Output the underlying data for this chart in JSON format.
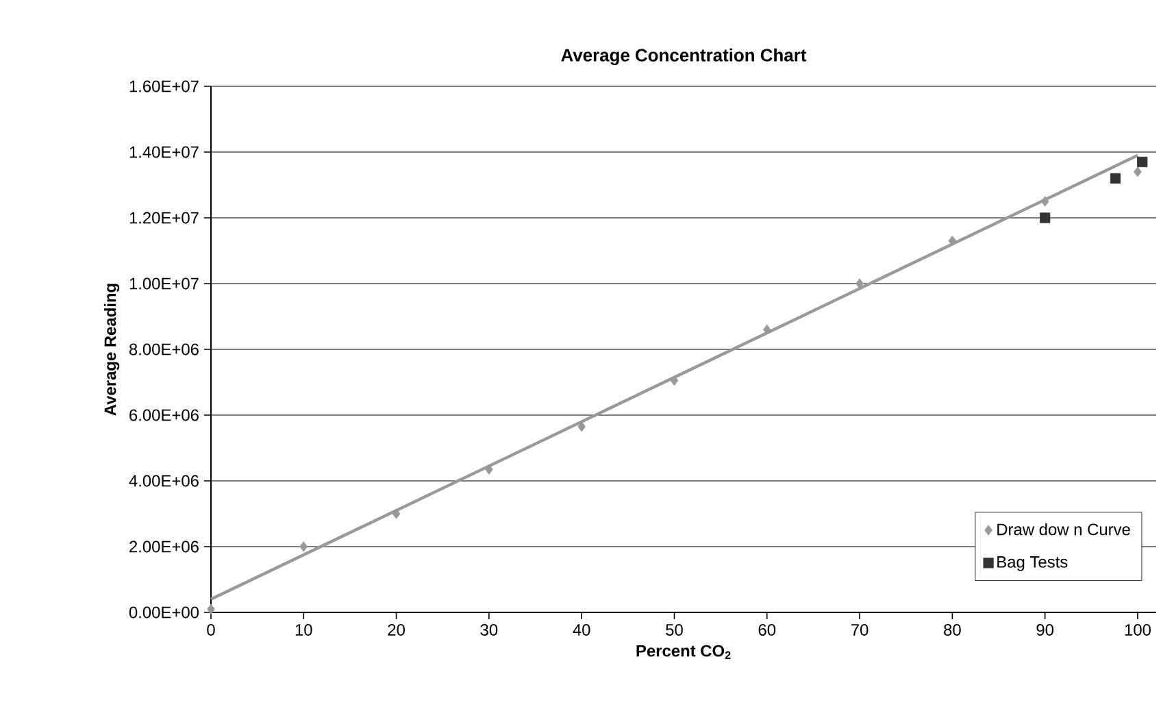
{
  "chart_data": {
    "type": "scatter",
    "title": "Average Concentration Chart",
    "xlabel": "Percent CO$_{2}$",
    "ylabel": "Average Reading",
    "xlim": [
      0,
      102
    ],
    "xticks": [
      0,
      10,
      20,
      30,
      40,
      50,
      60,
      70,
      80,
      90,
      100
    ],
    "ylim": [
      0,
      16000000
    ],
    "yticks": [
      {
        "value": 0,
        "label": "0.00E+00"
      },
      {
        "value": 2000000,
        "label": "2.00E+06"
      },
      {
        "value": 4000000,
        "label": "4.00E+06"
      },
      {
        "value": 6000000,
        "label": "6.00E+06"
      },
      {
        "value": 8000000,
        "label": "8.00E+06"
      },
      {
        "value": 10000000,
        "label": "1.00E+07"
      },
      {
        "value": 12000000,
        "label": "1.20E+07"
      },
      {
        "value": 14000000,
        "label": "1.40E+07"
      },
      {
        "value": 16000000,
        "label": "1.60E+07"
      }
    ],
    "grid": "y",
    "legend": "bottom right",
    "series": [
      {
        "name": "Draw dow n Curve",
        "color": "#999999",
        "marker": "diamond",
        "x": [
          0,
          10,
          20,
          30,
          40,
          50,
          60,
          70,
          80,
          90,
          100
        ],
        "values": [
          100000,
          2000000,
          3000000,
          4350000,
          5650000,
          7050000,
          8600000,
          10000000,
          11300000,
          12500000,
          13400000
        ]
      },
      {
        "name": "Bag Tests",
        "color": "#333333",
        "marker": "square",
        "x": [
          90,
          97.6,
          100.5
        ],
        "values": [
          12000000,
          13200000,
          13700000
        ]
      },
      {
        "type": "line",
        "color": "#999999",
        "marker": "none",
        "line_style": "solid",
        "x": [
          0,
          100
        ],
        "values": [
          400000,
          13900000
        ]
      }
    ]
  }
}
